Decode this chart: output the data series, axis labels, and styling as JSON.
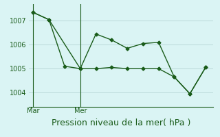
{
  "series1_x": [
    0,
    1,
    3,
    4,
    5,
    6,
    7,
    8,
    9,
    10,
    11
  ],
  "series1_y": [
    1007.35,
    1007.05,
    1005.0,
    1006.45,
    1006.2,
    1005.85,
    1006.05,
    1006.1,
    1004.65,
    1003.95,
    1005.05
  ],
  "series2_x": [
    0,
    1,
    2,
    3,
    4,
    5,
    6,
    7,
    8,
    9,
    10,
    11
  ],
  "series2_y": [
    1007.35,
    1007.05,
    1005.1,
    1005.0,
    1005.0,
    1005.05,
    1005.0,
    1005.0,
    1005.0,
    1004.65,
    1003.95,
    1005.05
  ],
  "line_color": "#1a5c1a",
  "bg_color": "#daf4f4",
  "grid_color": "#b8d8d8",
  "xlabel": "Pression niveau de la mer( hPa )",
  "xlabel_color": "#1a5c1a",
  "yticks": [
    1004,
    1005,
    1006,
    1007
  ],
  "ylim": [
    1003.4,
    1007.7
  ],
  "xlim": [
    -0.3,
    11.5
  ],
  "vline_x": [
    0,
    3
  ],
  "xtick_pos": [
    0,
    3
  ],
  "xtick_labels": [
    "Mar",
    "Mer"
  ],
  "xlabel_fontsize": 9,
  "tick_fontsize": 7
}
